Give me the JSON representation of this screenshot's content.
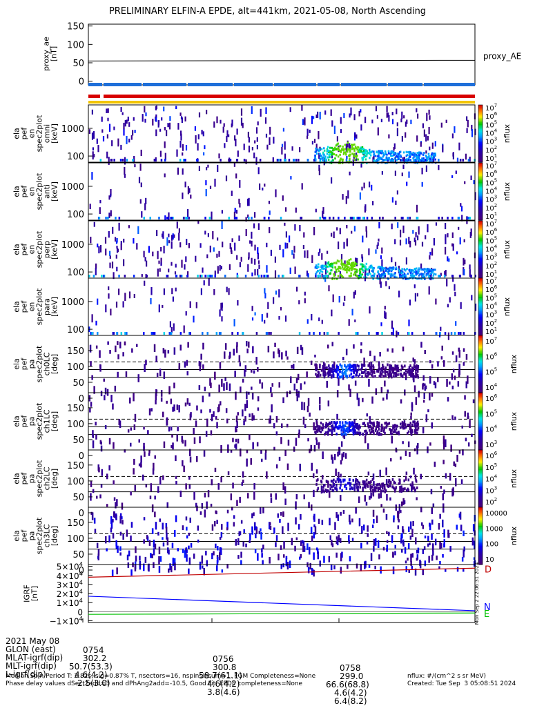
{
  "title": "PRELIMINARY ELFIN-A EPDE, alt=441km, 2021-05-08, North Ascending",
  "panels": {
    "ae": {
      "ylabel": [
        "proxy_ae",
        "[nT]"
      ],
      "yticks": [
        "150",
        "100",
        "50",
        "0"
      ],
      "legend": "proxy_AE",
      "value": 55,
      "ylim": [
        -10,
        155
      ]
    },
    "energy": [
      {
        "ylabel": [
          "ela",
          "pef",
          "en",
          "spec2plot",
          "omni",
          "[keV]"
        ],
        "yticks": [
          "1000",
          "100"
        ],
        "zlabel": "nflux",
        "zticks": [
          "10^7",
          "10^6",
          "10^5",
          "10^4",
          "10^3",
          "10^2",
          "10^1"
        ],
        "active": true
      },
      {
        "ylabel": [
          "ela",
          "pef",
          "en",
          "spec2plot",
          "anti",
          "[keV]"
        ],
        "yticks": [
          "1000",
          "100"
        ],
        "zlabel": "nflux",
        "zticks": [
          "10^7",
          "10^6",
          "10^5",
          "10^4",
          "10^3",
          "10^2",
          "10^1"
        ],
        "active": false
      },
      {
        "ylabel": [
          "ela",
          "pef",
          "en",
          "spec2plot",
          "perp",
          "[keV]"
        ],
        "yticks": [
          "1000",
          "100"
        ],
        "zlabel": "nflux",
        "zticks": [
          "10^7",
          "10^6",
          "10^5",
          "10^4",
          "10^3",
          "10^2",
          "10^1"
        ],
        "active": true
      },
      {
        "ylabel": [
          "ela",
          "pef",
          "en",
          "spec2plot",
          "para",
          "[keV]"
        ],
        "yticks": [
          "1000",
          "100"
        ],
        "zlabel": "nflux",
        "zticks": [
          "10^7",
          "10^6",
          "10^5",
          "10^4",
          "10^3",
          "10^2",
          "10^1"
        ],
        "active": false
      }
    ],
    "pitch": [
      {
        "ylabel": [
          "ela",
          "pef",
          "pa",
          "spec2plot",
          "ch0LC",
          "[deg]"
        ],
        "yticks": [
          "150",
          "100",
          "50",
          "0"
        ],
        "zlabel": "nflux",
        "zticks": [
          "10^7",
          "10^6",
          "10^5",
          "10^4"
        ],
        "strength": 1.0
      },
      {
        "ylabel": [
          "ela",
          "pef",
          "pa",
          "spec2plot",
          "ch1LC",
          "[deg]"
        ],
        "yticks": [
          "150",
          "100",
          "50",
          "0"
        ],
        "zlabel": "nflux",
        "zticks": [
          "10^6",
          "10^5",
          "10^4",
          "10^3"
        ],
        "strength": 0.9
      },
      {
        "ylabel": [
          "ela",
          "pef",
          "pa",
          "spec2plot",
          "ch2LC",
          "[deg]"
        ],
        "yticks": [
          "150",
          "100",
          "50",
          "0"
        ],
        "zlabel": "nflux",
        "zticks": [
          "10^6",
          "10^5",
          "10^4",
          "10^3",
          "10^2"
        ],
        "strength": 0.6
      },
      {
        "ylabel": [
          "ela",
          "pef",
          "pa",
          "spec2plot",
          "ch3LC",
          "[deg]"
        ],
        "yticks": [
          "150",
          "100",
          "50",
          "0"
        ],
        "zlabel": "nflux",
        "zticks": [
          "10000",
          "1000",
          "100",
          "10"
        ],
        "strength": 0.3
      }
    ],
    "igrf": {
      "ylabel": [
        "IGRF",
        "[nT]"
      ],
      "yticks": [
        "5×10^4",
        "4×10^4",
        "3×10^4",
        "2×10^4",
        "1×10^4",
        "0",
        "−1×10^4"
      ],
      "legend": [
        "D",
        "N",
        "E"
      ],
      "colors": {
        "D": "#c00000",
        "N": "#0000ff",
        "E": "#00c000"
      },
      "rotated_label": "Mon Sep 2 22:06:31 2024"
    }
  },
  "footer": {
    "rows": [
      {
        "label": "2021 May 08",
        "values": [
          "0754",
          "0756",
          "0758"
        ]
      },
      {
        "label": "GLON (east)",
        "values": [
          "302.2",
          "300.8",
          "299.0"
        ]
      },
      {
        "label": "MLAT-igrf(dip)",
        "values": [
          "50.7(53.3)",
          "58.7(61.1)",
          "66.6(68.8)"
        ]
      },
      {
        "label": "MLT-igrf(dip)",
        "values": [
          "4.6(4.2)",
          "4.6(4.2)",
          "4.6(4.2)"
        ]
      },
      {
        "label": "L-igrf(dip)",
        "values": [
          "2.5(3.0)",
          "3.8(4.6)",
          "6.4(8.2)"
        ]
      }
    ],
    "note1": "Median Spin Period T: 2.82s, sig=0.87% T, nsectors=16, nspinsinsum=1, FGM Completeness=None",
    "note2": "Phase delay values dSect2add=3 and dPhAng2add=-10.5, Good Fit, EPDE completeness=None",
    "units": "nflux: #/(cm^2 s sr MeV)",
    "created": "Created: Tue Sep  3 05:08:51 2024"
  },
  "chart_data": {
    "type": "heatmap",
    "title": "PRELIMINARY ELFIN-A EPDE, alt=441km, 2021-05-08, North Ascending",
    "x_ticks": [
      "0754",
      "0756",
      "0758"
    ],
    "energy_keV_ticks": [
      100,
      1000
    ],
    "pitch_deg_ticks": [
      0,
      50,
      100,
      150
    ],
    "proxy_AE_nT": 55,
    "igrf_nT": {
      "D": {
        "start": 38000,
        "end": 48000
      },
      "N": {
        "start": 17000,
        "end": 1000
      },
      "E": {
        "start": -3000,
        "end": -1500
      }
    },
    "flux_peak_time": "0758",
    "flux_peak_energy_keV": 80,
    "flux_peak_pitch_deg": 90
  }
}
